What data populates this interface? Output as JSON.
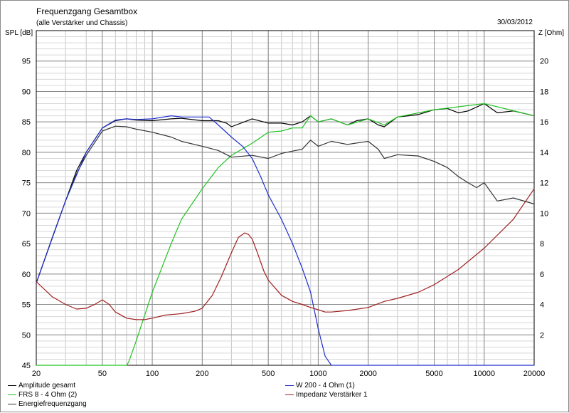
{
  "header": {
    "title": "Frequenzgang Gesamtbox",
    "subtitle": "(alle Verstärker und Chassis)",
    "date": "30/03/2012",
    "left_axis_label": "SPL [dB]",
    "right_axis_label": "Z [Ohm]"
  },
  "chart_data": {
    "type": "line",
    "x_scale": "log",
    "xlim": [
      20,
      20000
    ],
    "x_ticks": [
      20,
      50,
      100,
      200,
      500,
      1000,
      2000,
      5000,
      10000,
      20000
    ],
    "ylim_left": [
      45,
      100
    ],
    "y_ticks_left": [
      45,
      50,
      55,
      60,
      65,
      70,
      75,
      80,
      85,
      90,
      95
    ],
    "ylim_right": [
      0,
      22
    ],
    "y_ticks_right": [
      2,
      4,
      6,
      8,
      10,
      12,
      14,
      16,
      18,
      20
    ],
    "grid": true,
    "legend_position": "bottom",
    "series": [
      {
        "name": "Amplitude gesamt",
        "axis": "left",
        "color": "#000000",
        "x": [
          20,
          25,
          30,
          35,
          40,
          50,
          60,
          70,
          80,
          100,
          130,
          150,
          200,
          250,
          280,
          300,
          400,
          500,
          600,
          700,
          800,
          900,
          1000,
          1200,
          1500,
          1700,
          2000,
          2300,
          2500,
          3000,
          3500,
          4000,
          5000,
          6000,
          7000,
          8000,
          10000,
          12000,
          15000,
          20000
        ],
        "y": [
          58.5,
          66,
          72,
          77,
          80,
          84,
          85.2,
          85.5,
          85.3,
          85.2,
          85.5,
          85.6,
          85.2,
          85.2,
          84.8,
          84.2,
          85.5,
          84.8,
          84.8,
          84.5,
          85,
          86,
          85,
          85.5,
          84.5,
          85.2,
          85.5,
          84.5,
          84.2,
          85.8,
          86,
          86.2,
          87,
          87.2,
          86.5,
          86.8,
          88,
          86.5,
          86.8,
          86
        ]
      },
      {
        "name": "FRS 8 - 4 Ohm (2)",
        "axis": "left",
        "color": "#22c322",
        "x": [
          20,
          50,
          70,
          72,
          80,
          100,
          130,
          150,
          200,
          250,
          300,
          400,
          500,
          600,
          700,
          800,
          900,
          1000,
          1200,
          1500,
          2000,
          2500,
          3000,
          5000,
          10000,
          20000
        ],
        "y": [
          45,
          45,
          45,
          45.5,
          49,
          57,
          65,
          69,
          74,
          77.5,
          79.5,
          81.5,
          83.3,
          83.5,
          84,
          84,
          86,
          85,
          85.5,
          84.5,
          85.5,
          84.5,
          85.8,
          87,
          88,
          86
        ]
      },
      {
        "name": "Energiefrequenzgang",
        "axis": "left",
        "color": "#333333",
        "x": [
          20,
          25,
          30,
          35,
          40,
          50,
          60,
          70,
          80,
          100,
          130,
          150,
          200,
          250,
          300,
          400,
          500,
          600,
          700,
          800,
          900,
          1000,
          1200,
          1500,
          2000,
          2300,
          2500,
          3000,
          4000,
          5000,
          6000,
          7000,
          8000,
          9000,
          10000,
          12000,
          15000,
          20000
        ],
        "y": [
          58.5,
          66,
          72,
          76.5,
          79.5,
          83.5,
          84.3,
          84.2,
          83.8,
          83.3,
          82.5,
          81.8,
          81,
          80.3,
          79.2,
          79.5,
          79,
          79.8,
          80.2,
          80.5,
          82,
          81,
          81.8,
          81.3,
          81.8,
          80.5,
          79,
          79.6,
          79.4,
          78.5,
          77.5,
          76,
          75,
          74.2,
          75,
          72,
          72.5,
          71.5
        ]
      },
      {
        "name": "W 200 - 4 Ohm (1)",
        "axis": "left",
        "color": "#1f2fcf",
        "x": [
          20,
          30,
          40,
          50,
          60,
          70,
          80,
          100,
          130,
          150,
          200,
          220,
          250,
          300,
          350,
          400,
          450,
          500,
          600,
          700,
          800,
          900,
          1000,
          1100,
          1200,
          1300,
          2000,
          5000,
          20000
        ],
        "y": [
          58.5,
          72,
          80,
          84,
          85.3,
          85.5,
          85.4,
          85.5,
          86,
          85.8,
          85.8,
          85.8,
          84.5,
          82.5,
          81,
          79,
          76,
          73,
          69,
          65,
          61,
          57,
          51,
          46.5,
          45,
          45,
          45,
          45,
          45
        ]
      },
      {
        "name": "Impedanz Verstärker 1",
        "axis": "right",
        "color": "#a02020",
        "x": [
          20,
          25,
          30,
          35,
          40,
          45,
          50,
          55,
          60,
          70,
          80,
          90,
          100,
          120,
          150,
          180,
          200,
          230,
          260,
          300,
          330,
          360,
          380,
          400,
          430,
          470,
          500,
          600,
          700,
          800,
          900,
          1000,
          1100,
          1200,
          1500,
          2000,
          2500,
          3000,
          4000,
          5000,
          7000,
          10000,
          15000,
          20000
        ],
        "y": [
          5.5,
          4.5,
          4,
          3.7,
          3.75,
          4,
          4.3,
          4,
          3.5,
          3.1,
          3,
          3,
          3.1,
          3.3,
          3.4,
          3.55,
          3.75,
          4.6,
          5.8,
          7.4,
          8.4,
          8.7,
          8.6,
          8.3,
          7.4,
          6.2,
          5.6,
          4.6,
          4.2,
          4,
          3.8,
          3.65,
          3.5,
          3.5,
          3.6,
          3.8,
          4.2,
          4.4,
          4.8,
          5.3,
          6.3,
          7.7,
          9.6,
          11.6
        ]
      }
    ]
  },
  "legend": [
    {
      "label": "Amplitude gesamt",
      "color": "#000000"
    },
    {
      "label": "W 200 - 4 Ohm (1)",
      "color": "#1f2fcf"
    },
    {
      "label": "FRS 8 - 4 Ohm (2)",
      "color": "#22c322"
    },
    {
      "label": "Impedanz Verstärker 1",
      "color": "#a02020"
    },
    {
      "label": "Energiefrequenzgang",
      "color": "#333333"
    }
  ]
}
